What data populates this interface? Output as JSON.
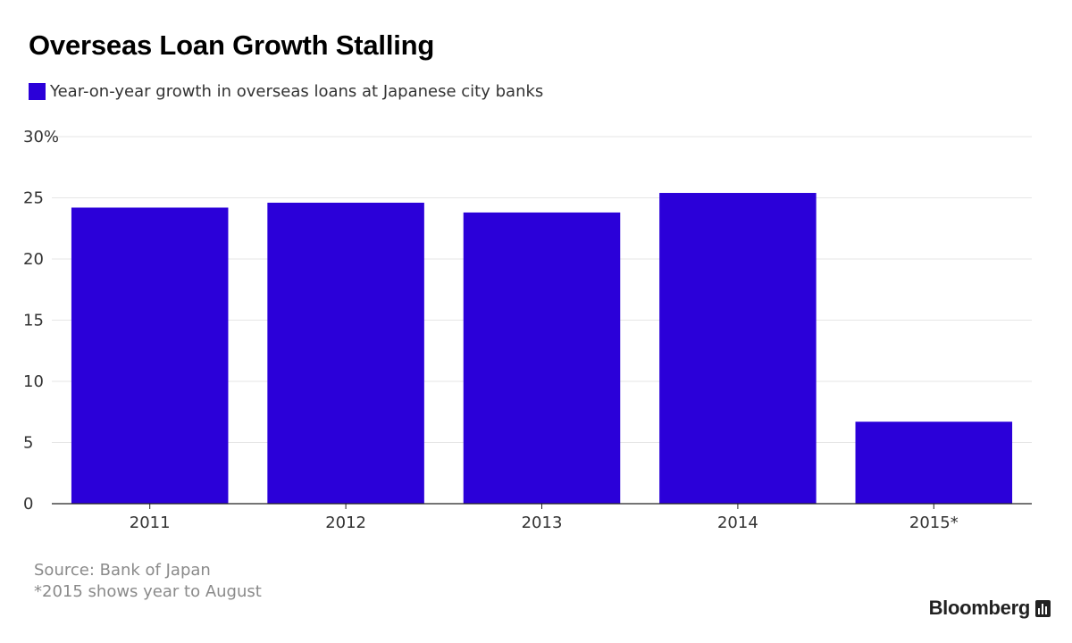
{
  "title": "Overseas Loan Growth Stalling",
  "legend_label": "Year-on-year growth in overseas loans at Japanese city banks",
  "colors": {
    "bar": "#2b00d9",
    "grid": "#e6e6e6",
    "axis": "#222222",
    "tick_text": "#333333"
  },
  "chart_data": {
    "type": "bar",
    "categories": [
      "2011",
      "2012",
      "2013",
      "2014",
      "2015*"
    ],
    "series": [
      {
        "name": "Year-on-year growth in overseas loans at Japanese city banks",
        "values": [
          24.2,
          24.6,
          23.8,
          25.4,
          6.7
        ]
      }
    ],
    "y_ticks": [
      "30%",
      "25",
      "20",
      "15",
      "10",
      "5",
      "0"
    ],
    "ylim": [
      0,
      30
    ],
    "grid": true,
    "legend": "top-left"
  },
  "source_line": "Source: Bank of Japan",
  "footnote": "*2015 shows year to August",
  "brand": "Bloomberg",
  "brand_icon": "bloomberg-chart-icon"
}
